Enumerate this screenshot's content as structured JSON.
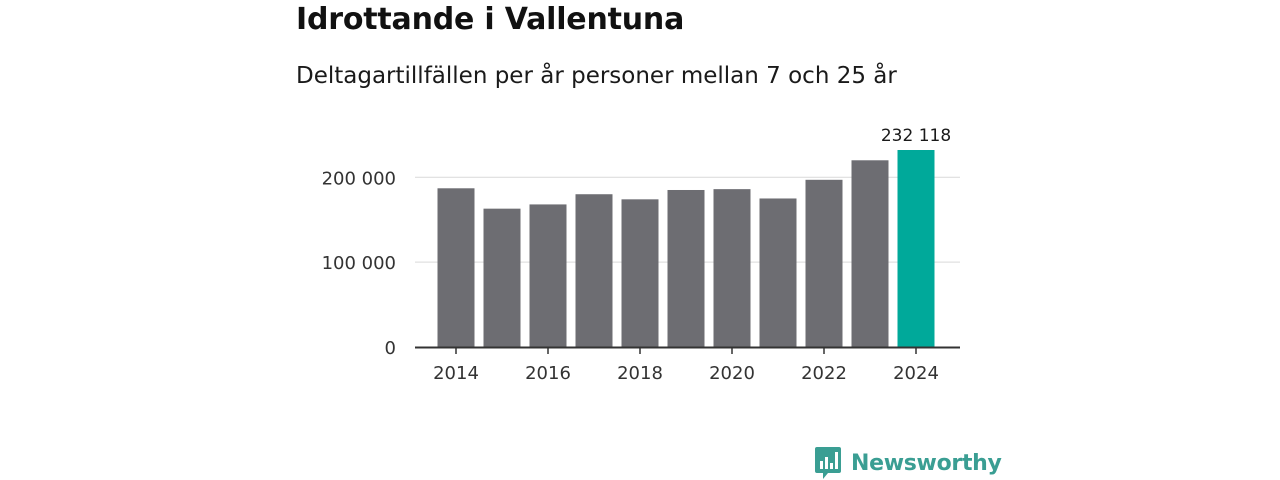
{
  "colors": {
    "bar_default": "#6d6d72",
    "bar_highlight": "#00a99a",
    "gridline": "#d9d9d9",
    "axis": "#333333",
    "brand": "#3a9e93"
  },
  "brand": {
    "icon": "bar-chart-logo-icon",
    "name": "Newsworthy"
  },
  "chart_data": {
    "type": "bar",
    "title": "Idrottande i Vallentuna",
    "subtitle": "Deltagartillfällen per år personer mellan 7 och 25 år",
    "xlabel": "",
    "ylabel": "",
    "categories": [
      "2014",
      "2015",
      "2016",
      "2017",
      "2018",
      "2019",
      "2020",
      "2021",
      "2022",
      "2023",
      "2024"
    ],
    "values": [
      187000,
      163000,
      168000,
      180000,
      174000,
      185000,
      186000,
      175000,
      197000,
      220000,
      232118
    ],
    "highlight_index": 10,
    "data_labels": [
      {
        "index": 10,
        "text": "232 118"
      }
    ],
    "x_tick_labels": [
      "2014",
      "2016",
      "2018",
      "2020",
      "2022",
      "2024"
    ],
    "y_ticks": [
      {
        "value": 0,
        "label": "0"
      },
      {
        "value": 100000,
        "label": "100 000"
      },
      {
        "value": 200000,
        "label": "200 000"
      }
    ],
    "ylim": [
      0,
      232118
    ],
    "grid": true,
    "legend": "none"
  }
}
